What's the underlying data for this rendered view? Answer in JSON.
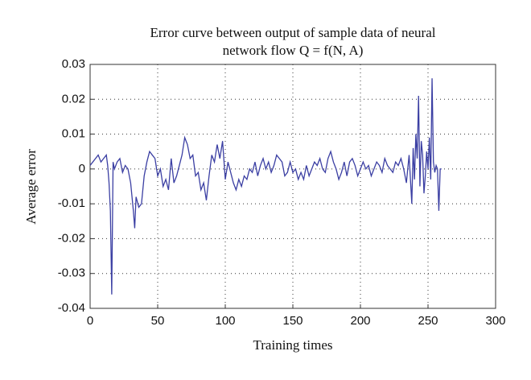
{
  "chart_data": {
    "type": "line",
    "title": [
      "Error curve between output of sample data of neural",
      "network flow Q = f(N, A)"
    ],
    "xlabel": "Training times",
    "ylabel": "Average error",
    "xlim": [
      0,
      300
    ],
    "xticks": [
      0,
      50,
      100,
      150,
      200,
      250,
      300
    ],
    "ylim": [
      -0.04,
      0.03
    ],
    "yticks": [
      -0.04,
      -0.03,
      -0.02,
      -0.01,
      0,
      0.01,
      0.02,
      0.03
    ],
    "grid": true,
    "color": "#3b3fa3",
    "x": [
      0,
      2,
      4,
      6,
      8,
      10,
      12,
      13,
      14,
      15,
      16,
      17,
      18,
      20,
      22,
      24,
      26,
      28,
      30,
      32,
      33,
      34,
      36,
      38,
      40,
      42,
      44,
      46,
      48,
      50,
      52,
      54,
      56,
      58,
      60,
      62,
      64,
      66,
      68,
      70,
      72,
      74,
      76,
      78,
      80,
      82,
      84,
      86,
      88,
      90,
      92,
      94,
      96,
      98,
      100,
      102,
      104,
      106,
      108,
      110,
      112,
      114,
      116,
      118,
      120,
      122,
      124,
      126,
      128,
      130,
      132,
      134,
      136,
      138,
      140,
      142,
      144,
      146,
      148,
      150,
      152,
      154,
      156,
      158,
      160,
      162,
      164,
      166,
      168,
      170,
      172,
      174,
      176,
      178,
      180,
      182,
      184,
      186,
      188,
      190,
      192,
      194,
      196,
      198,
      200,
      202,
      204,
      206,
      208,
      210,
      212,
      214,
      216,
      218,
      220,
      222,
      224,
      226,
      228,
      230,
      232,
      234,
      236,
      238,
      239,
      240,
      241,
      242,
      243,
      244,
      245,
      246,
      247,
      248,
      249,
      250,
      251,
      252,
      253,
      254,
      255,
      256,
      257,
      258,
      259,
      260
    ],
    "values": [
      0.001,
      0.002,
      0.003,
      0.004,
      0.002,
      0.003,
      0.004,
      0.001,
      -0.004,
      -0.012,
      -0.036,
      0.002,
      0.0,
      0.002,
      0.003,
      -0.001,
      0.001,
      0.0,
      -0.004,
      -0.012,
      -0.017,
      -0.008,
      -0.011,
      -0.01,
      -0.002,
      0.002,
      0.005,
      0.004,
      0.003,
      -0.002,
      0.0,
      -0.005,
      -0.003,
      -0.006,
      0.003,
      -0.004,
      -0.002,
      0.001,
      0.004,
      0.009,
      0.007,
      0.003,
      0.004,
      -0.002,
      -0.001,
      -0.006,
      -0.004,
      -0.009,
      -0.002,
      0.004,
      0.002,
      0.007,
      0.003,
      0.008,
      -0.003,
      0.002,
      -0.001,
      -0.004,
      -0.006,
      -0.003,
      -0.005,
      -0.002,
      -0.003,
      0.0,
      -0.001,
      0.002,
      -0.002,
      0.001,
      0.003,
      0.0,
      0.002,
      -0.001,
      0.001,
      0.004,
      0.003,
      0.002,
      -0.002,
      -0.001,
      0.002,
      -0.001,
      0.0,
      -0.003,
      -0.001,
      -0.003,
      0.001,
      -0.002,
      0.0,
      0.002,
      0.001,
      0.003,
      0.0,
      -0.001,
      0.003,
      0.005,
      0.002,
      0.0,
      -0.003,
      -0.001,
      0.002,
      -0.002,
      0.002,
      0.003,
      0.001,
      -0.002,
      0.0,
      0.002,
      0.0,
      0.001,
      -0.002,
      0.0,
      0.002,
      0.001,
      -0.001,
      0.003,
      0.001,
      0.0,
      -0.001,
      0.002,
      0.001,
      0.003,
      0.0,
      -0.004,
      0.004,
      -0.01,
      0.006,
      -0.003,
      0.01,
      0.003,
      0.021,
      -0.005,
      0.008,
      0.004,
      -0.007,
      -0.002,
      0.005,
      0.0,
      0.009,
      -0.003,
      0.026,
      0.002,
      -0.001,
      0.001,
      0.0,
      -0.012,
      0.0,
      0.0
    ]
  }
}
